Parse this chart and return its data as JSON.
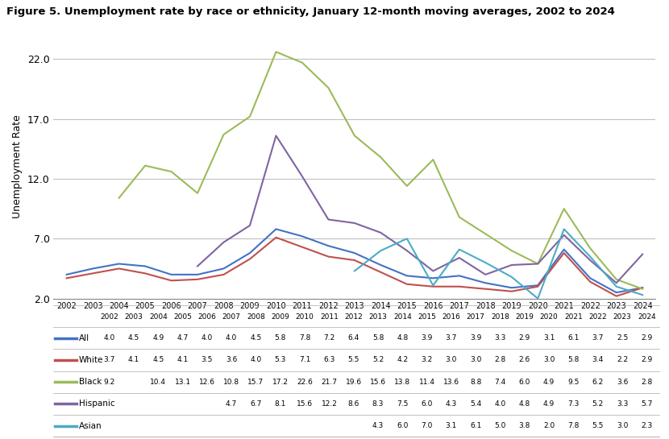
{
  "title": "Figure 5. Unemployment rate by race or ethnicity, January 12-month moving averages, 2002 to 2024",
  "ylabel": "Unemployment Rate",
  "years": [
    2002,
    2003,
    2004,
    2005,
    2006,
    2007,
    2008,
    2009,
    2010,
    2011,
    2012,
    2013,
    2014,
    2015,
    2016,
    2017,
    2018,
    2019,
    2020,
    2021,
    2022,
    2023,
    2024
  ],
  "series": {
    "All": [
      4.0,
      4.5,
      4.9,
      4.7,
      4.0,
      4.0,
      4.5,
      5.8,
      7.8,
      7.2,
      6.4,
      5.8,
      4.8,
      3.9,
      3.7,
      3.9,
      3.3,
      2.9,
      3.1,
      6.1,
      3.7,
      2.5,
      2.9
    ],
    "White": [
      3.7,
      4.1,
      4.5,
      4.1,
      3.5,
      3.6,
      4.0,
      5.3,
      7.1,
      6.3,
      5.5,
      5.2,
      4.2,
      3.2,
      3.0,
      3.0,
      2.8,
      2.6,
      3.0,
      5.8,
      3.4,
      2.2,
      2.9
    ],
    "Black": [
      9.2,
      null,
      10.4,
      13.1,
      12.6,
      10.8,
      15.7,
      17.2,
      22.6,
      21.7,
      19.6,
      15.6,
      13.8,
      11.4,
      13.6,
      8.8,
      7.4,
      6.0,
      4.9,
      9.5,
      6.2,
      3.6,
      2.8
    ],
    "Hispanic": [
      null,
      null,
      null,
      null,
      null,
      4.7,
      6.7,
      8.1,
      15.6,
      12.2,
      8.6,
      8.3,
      7.5,
      6.0,
      4.3,
      5.4,
      4.0,
      4.8,
      4.9,
      7.3,
      5.2,
      3.3,
      5.7
    ],
    "Asian": [
      null,
      null,
      null,
      null,
      null,
      null,
      null,
      null,
      null,
      null,
      null,
      4.3,
      6.0,
      7.0,
      3.1,
      6.1,
      5.0,
      3.8,
      2.0,
      7.8,
      5.5,
      3.0,
      2.3
    ]
  },
  "colors": {
    "All": "#4472C4",
    "White": "#C0504D",
    "Black": "#9BBB59",
    "Hispanic": "#8064A2",
    "Asian": "#4BACC6"
  },
  "ylim": [
    2.0,
    24.0
  ],
  "yticks": [
    2.0,
    7.0,
    12.0,
    17.0,
    22.0
  ],
  "background_color": "#FFFFFF",
  "grid_color": "#C0C0C0"
}
